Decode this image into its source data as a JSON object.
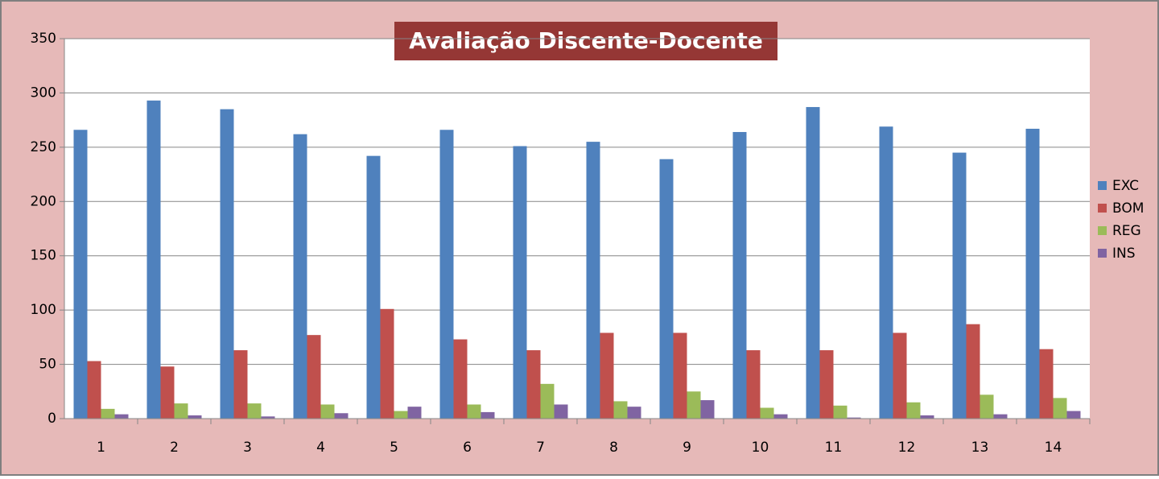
{
  "chart_data": {
    "type": "bar",
    "title": "Avaliação Discente-Docente",
    "categories": [
      "1",
      "2",
      "3",
      "4",
      "5",
      "6",
      "7",
      "8",
      "9",
      "10",
      "11",
      "12",
      "13",
      "14"
    ],
    "series": [
      {
        "name": "EXC",
        "color": "#4f81bd",
        "values": [
          266,
          293,
          285,
          262,
          242,
          266,
          251,
          255,
          239,
          264,
          287,
          269,
          245,
          267
        ]
      },
      {
        "name": "BOM",
        "color": "#c0504d",
        "values": [
          53,
          48,
          63,
          77,
          101,
          73,
          63,
          79,
          79,
          63,
          63,
          79,
          87,
          64
        ]
      },
      {
        "name": "REG",
        "color": "#9bbb59",
        "values": [
          9,
          14,
          14,
          13,
          7,
          13,
          32,
          16,
          25,
          10,
          12,
          15,
          22,
          19
        ]
      },
      {
        "name": "INS",
        "color": "#8064a2",
        "values": [
          4,
          3,
          2,
          5,
          11,
          6,
          13,
          11,
          17,
          4,
          1,
          3,
          4,
          7
        ]
      }
    ],
    "ylim": [
      0,
      350
    ],
    "yticks": [
      0,
      50,
      100,
      150,
      200,
      250,
      300,
      350
    ],
    "grid": true,
    "legend": "right"
  }
}
